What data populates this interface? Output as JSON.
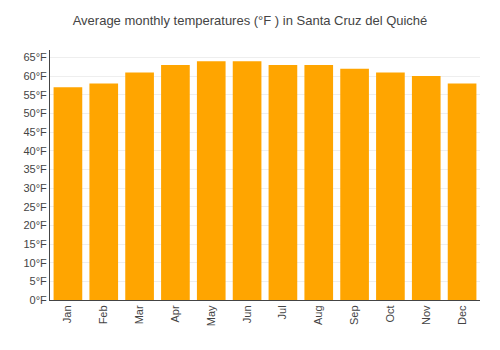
{
  "chart_data": {
    "type": "bar",
    "title": "Average monthly temperatures (°F ) in Santa Cruz del Quiché",
    "categories": [
      "Jan",
      "Feb",
      "Mar",
      "Apr",
      "May",
      "Jun",
      "Jul",
      "Aug",
      "Sep",
      "Oct",
      "Nov",
      "Dec"
    ],
    "values": [
      57,
      58,
      61,
      63,
      64,
      64,
      63,
      63,
      62,
      61,
      60,
      58
    ],
    "color": "#FFA500",
    "ylim": [
      0,
      67
    ],
    "yticks": [
      {
        "value": 0,
        "label": "0°F"
      },
      {
        "value": 5,
        "label": "5°F"
      },
      {
        "value": 10,
        "label": "10°F"
      },
      {
        "value": 15,
        "label": "15°F"
      },
      {
        "value": 20,
        "label": "20°F"
      },
      {
        "value": 25,
        "label": "25°F"
      },
      {
        "value": 30,
        "label": "30°F"
      },
      {
        "value": 35,
        "label": "35°F"
      },
      {
        "value": 40,
        "label": "40°F"
      },
      {
        "value": 45,
        "label": "45°F"
      },
      {
        "value": 50,
        "label": "50°F"
      },
      {
        "value": 55,
        "label": "55°F"
      },
      {
        "value": 60,
        "label": "60°F"
      },
      {
        "value": 65,
        "label": "65°F"
      }
    ],
    "grid": true
  }
}
